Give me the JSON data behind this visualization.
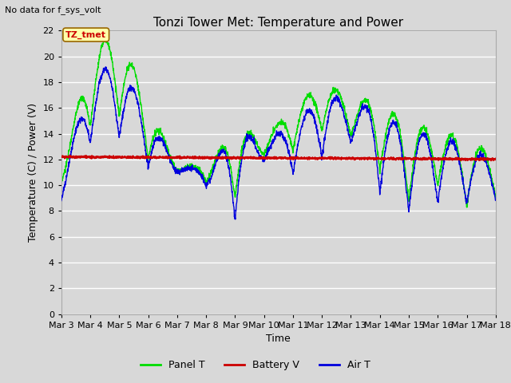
{
  "title": "Tonzi Tower Met: Temperature and Power",
  "no_data_text": "No data for f_sys_volt",
  "annotation_text": "TZ_tmet",
  "ylabel": "Temperature (C) / Power (V)",
  "xlabel": "Time",
  "ylim": [
    0,
    22
  ],
  "yticks": [
    0,
    2,
    4,
    6,
    8,
    10,
    12,
    14,
    16,
    18,
    20,
    22
  ],
  "xtick_labels": [
    "Mar 3",
    "Mar 4",
    "Mar 5",
    "Mar 6",
    "Mar 7",
    "Mar 8",
    "Mar 9",
    "Mar 10",
    "Mar 11",
    "Mar 12",
    "Mar 13",
    "Mar 14",
    "Mar 15",
    "Mar 16",
    "Mar 17",
    "Mar 18"
  ],
  "bg_color": "#d8d8d8",
  "plot_bg_color": "#d8d8d8",
  "grid_color": "#ffffff",
  "panel_t_color": "#00dd00",
  "battery_v_color": "#cc0000",
  "air_t_color": "#0000dd",
  "legend_labels": [
    "Panel T",
    "Battery V",
    "Air T"
  ],
  "title_fontsize": 11,
  "axis_label_fontsize": 9,
  "tick_fontsize": 8,
  "no_data_fontsize": 8,
  "legend_fontsize": 9,
  "annotation_facecolor": "#ffffaa",
  "annotation_edgecolor": "#996600",
  "annotation_text_color": "#cc0000",
  "annotation_fontsize": 8
}
